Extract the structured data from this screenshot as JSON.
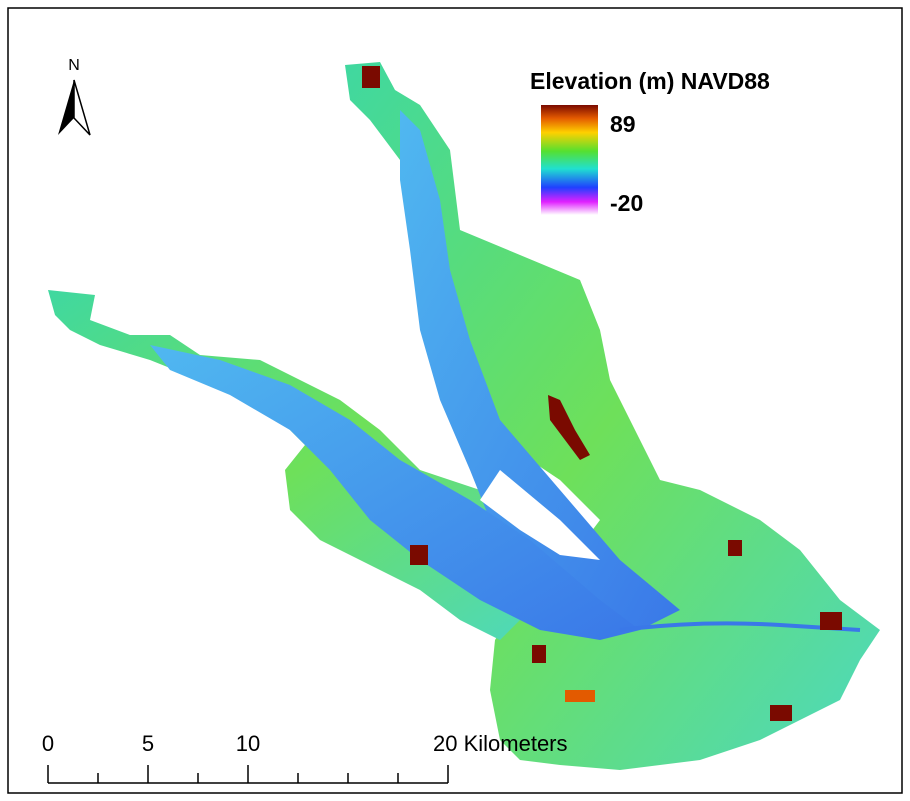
{
  "north_arrow": {
    "label": "N"
  },
  "legend": {
    "title": "Elevation (m) NAVD88",
    "max_label": "89",
    "min_label": "-20"
  },
  "scale_bar": {
    "labels": [
      "0",
      "5",
      "10",
      "20 Kilometers"
    ]
  }
}
